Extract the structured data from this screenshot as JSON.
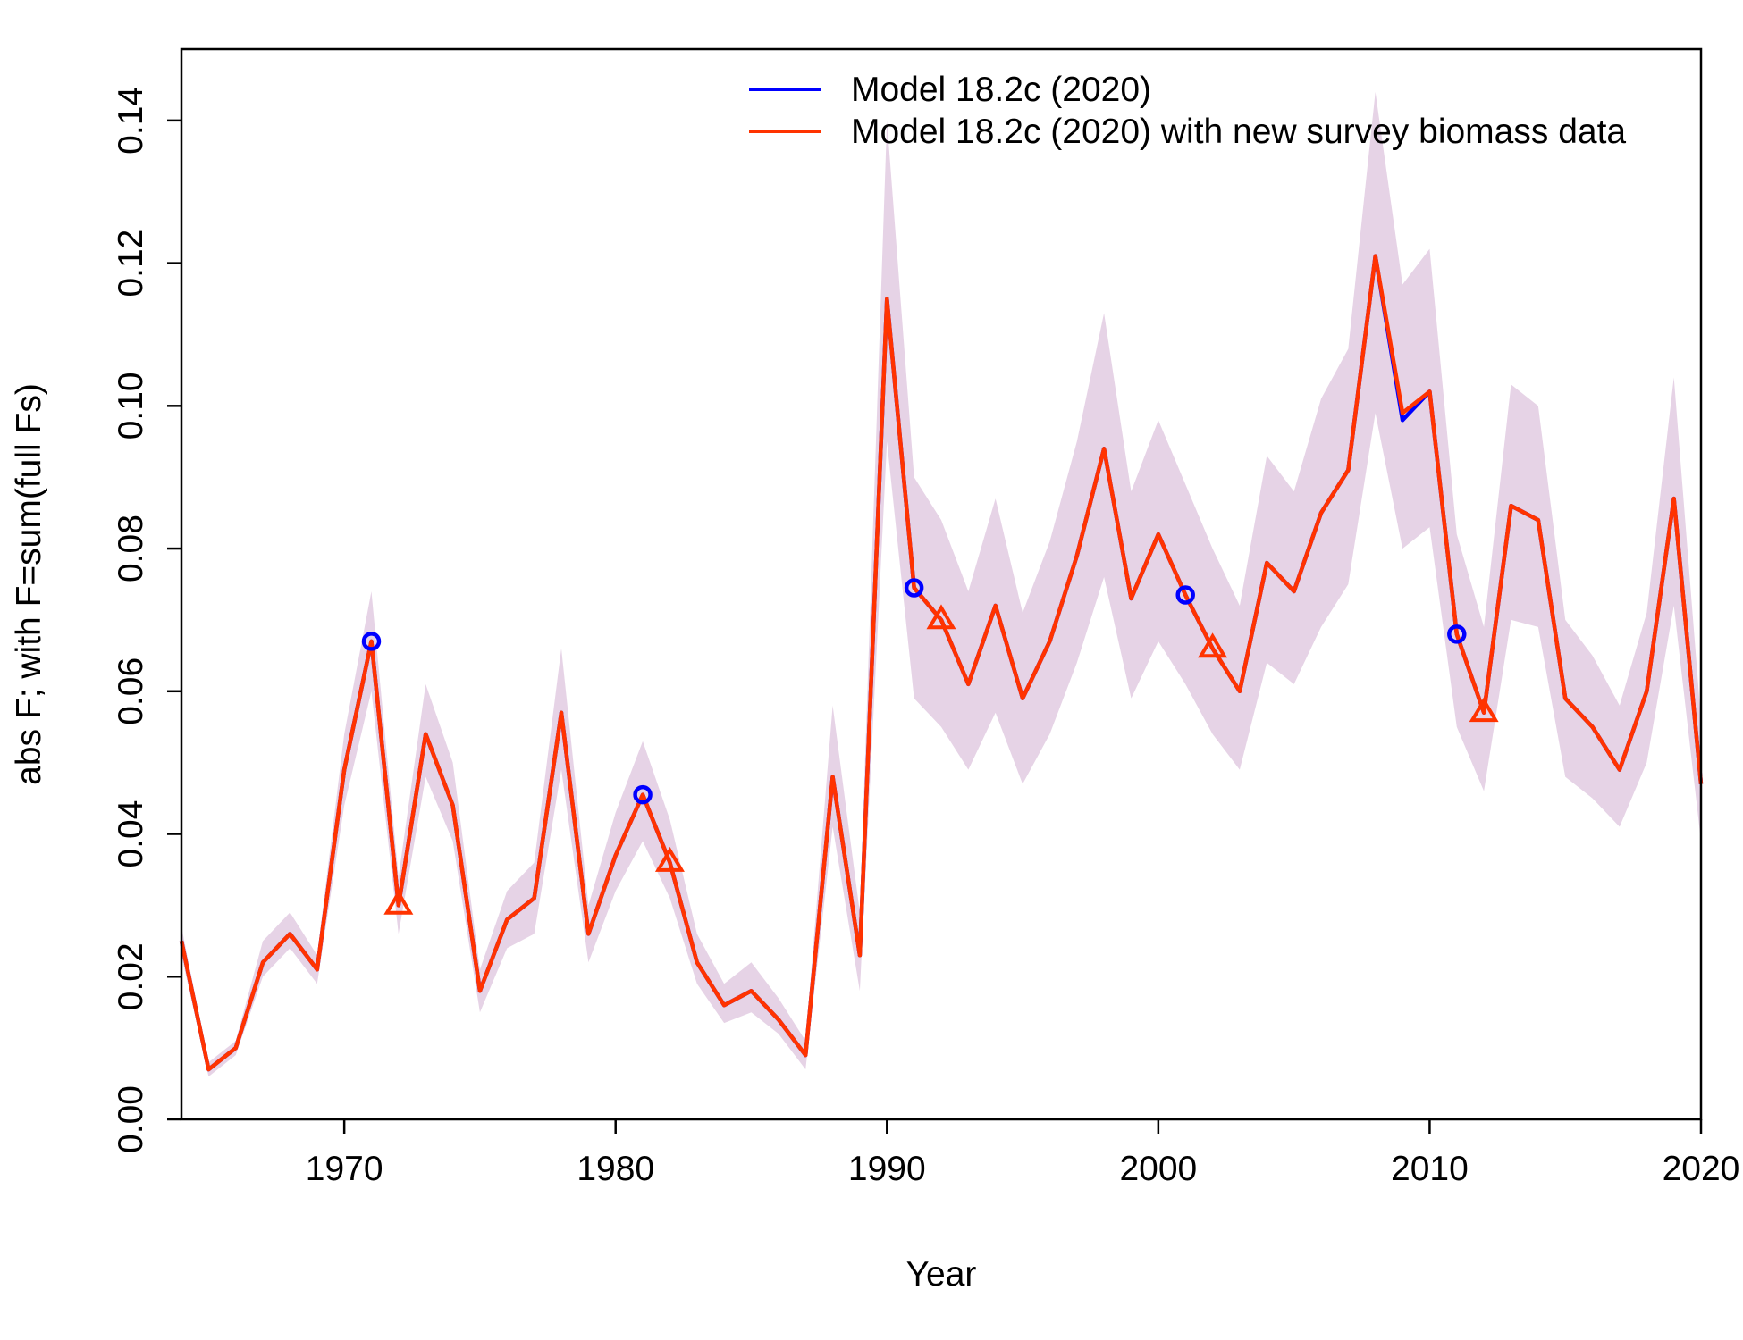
{
  "chart_data": {
    "type": "line",
    "title": "",
    "xlabel": "Year",
    "ylabel": "abs F; with F=sum(full Fs)",
    "xlim": [
      1964,
      2020
    ],
    "ylim": [
      0,
      0.15
    ],
    "x_ticks": [
      1970,
      1980,
      1990,
      2000,
      2010,
      2020
    ],
    "x_tick_labels": [
      "1970",
      "1980",
      "1990",
      "2000",
      "2010",
      "2020"
    ],
    "y_ticks": [
      0,
      0.02,
      0.04,
      0.06,
      0.08,
      0.1,
      0.12,
      0.14
    ],
    "y_tick_labels": [
      "0.00",
      "0.02",
      "0.04",
      "0.06",
      "0.08",
      "0.10",
      "0.12",
      "0.14"
    ],
    "grid": false,
    "legend_position": "top-right",
    "colors": {
      "blue": "#0000ff",
      "red": "#ff3300",
      "band": "#e6d3e6",
      "axis": "#000000"
    },
    "x": [
      1964,
      1965,
      1966,
      1967,
      1968,
      1969,
      1970,
      1971,
      1972,
      1973,
      1974,
      1975,
      1976,
      1977,
      1978,
      1979,
      1980,
      1981,
      1982,
      1983,
      1984,
      1985,
      1986,
      1987,
      1988,
      1989,
      1990,
      1991,
      1992,
      1993,
      1994,
      1995,
      1996,
      1997,
      1998,
      1999,
      2000,
      2001,
      2002,
      2003,
      2004,
      2005,
      2006,
      2007,
      2008,
      2009,
      2010,
      2011,
      2012,
      2013,
      2014,
      2015,
      2016,
      2017,
      2018,
      2019,
      2020
    ],
    "series": [
      {
        "name": "Model 18.2c (2020)",
        "color": "#0000ff",
        "values": [
          0.025,
          0.007,
          0.01,
          0.022,
          0.026,
          0.021,
          0.049,
          0.067,
          0.03,
          0.054,
          0.044,
          0.018,
          0.028,
          0.031,
          0.057,
          0.026,
          0.037,
          0.0455,
          0.036,
          0.022,
          0.016,
          0.018,
          0.014,
          0.009,
          0.048,
          0.023,
          0.115,
          0.0745,
          0.07,
          0.061,
          0.072,
          0.059,
          0.067,
          0.079,
          0.094,
          0.073,
          0.082,
          0.0735,
          0.066,
          0.06,
          0.078,
          0.074,
          0.085,
          0.091,
          0.121,
          0.098,
          0.102,
          0.068,
          0.057,
          0.086,
          0.084,
          0.059,
          0.055,
          0.049,
          0.06,
          0.087,
          0.047
        ],
        "markers": {
          "shape": "circle",
          "x": [
            1971,
            1981,
            1991,
            2001,
            2011
          ],
          "y": [
            0.067,
            0.0455,
            0.0745,
            0.0735,
            0.068
          ]
        }
      },
      {
        "name": "Model 18.2c (2020) with new survey biomass data",
        "color": "#ff3300",
        "values": [
          0.025,
          0.007,
          0.01,
          0.022,
          0.026,
          0.021,
          0.049,
          0.067,
          0.03,
          0.054,
          0.044,
          0.018,
          0.028,
          0.031,
          0.057,
          0.026,
          0.037,
          0.0455,
          0.036,
          0.022,
          0.016,
          0.018,
          0.014,
          0.009,
          0.048,
          0.023,
          0.115,
          0.0745,
          0.07,
          0.061,
          0.072,
          0.059,
          0.067,
          0.079,
          0.094,
          0.073,
          0.082,
          0.0735,
          0.066,
          0.06,
          0.078,
          0.074,
          0.085,
          0.091,
          0.121,
          0.099,
          0.102,
          0.068,
          0.057,
          0.086,
          0.084,
          0.059,
          0.055,
          0.049,
          0.06,
          0.087,
          0.047
        ],
        "markers": {
          "shape": "triangle",
          "x": [
            1972,
            1982,
            1992,
            2002,
            2012
          ],
          "y": [
            0.03,
            0.036,
            0.07,
            0.066,
            0.057
          ]
        }
      }
    ],
    "band": {
      "lower": [
        0.023,
        0.006,
        0.009,
        0.02,
        0.024,
        0.019,
        0.044,
        0.06,
        0.026,
        0.048,
        0.039,
        0.015,
        0.024,
        0.026,
        0.049,
        0.022,
        0.032,
        0.039,
        0.031,
        0.019,
        0.0135,
        0.015,
        0.012,
        0.007,
        0.041,
        0.018,
        0.095,
        0.059,
        0.055,
        0.049,
        0.057,
        0.047,
        0.054,
        0.064,
        0.076,
        0.059,
        0.067,
        0.061,
        0.054,
        0.049,
        0.064,
        0.061,
        0.069,
        0.075,
        0.099,
        0.08,
        0.083,
        0.055,
        0.046,
        0.07,
        0.069,
        0.048,
        0.045,
        0.041,
        0.05,
        0.072,
        0.039
      ],
      "upper": [
        0.027,
        0.008,
        0.011,
        0.025,
        0.029,
        0.023,
        0.054,
        0.074,
        0.034,
        0.061,
        0.05,
        0.021,
        0.032,
        0.036,
        0.066,
        0.03,
        0.043,
        0.053,
        0.042,
        0.026,
        0.019,
        0.022,
        0.017,
        0.011,
        0.058,
        0.029,
        0.14,
        0.09,
        0.084,
        0.074,
        0.087,
        0.071,
        0.081,
        0.095,
        0.113,
        0.088,
        0.098,
        0.089,
        0.08,
        0.072,
        0.093,
        0.088,
        0.101,
        0.108,
        0.144,
        0.117,
        0.122,
        0.082,
        0.069,
        0.103,
        0.1,
        0.07,
        0.065,
        0.058,
        0.071,
        0.104,
        0.056
      ]
    }
  }
}
